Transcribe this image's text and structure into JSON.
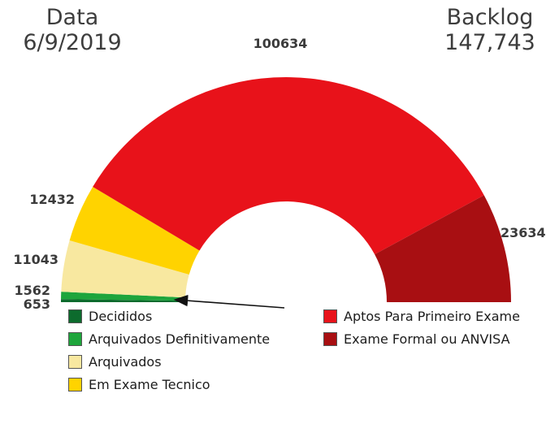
{
  "header": {
    "date_label": "Data",
    "date_value": "6/9/2019",
    "backlog_label": "Backlog",
    "backlog_value": "147,743"
  },
  "chart_data": {
    "type": "pie",
    "variant": "semi-donut",
    "orientation": "half-circle-top",
    "legend_position": "bottom-two-columns",
    "segments": [
      {
        "label": "Decididos",
        "value": 653,
        "color": "#0d6b2d"
      },
      {
        "label": "Arquivados Definitivamente",
        "value": 1562,
        "color": "#1ea53c"
      },
      {
        "label": "Arquivados",
        "value": 11043,
        "color": "#f8e8a0"
      },
      {
        "label": "Em Exame Tecnico",
        "value": 12432,
        "color": "#ffd300"
      },
      {
        "label": "Aptos Para Primeiro Exame",
        "value": 100634,
        "color": "#e8121a"
      },
      {
        "label": "Exame Formal ou ANVISA",
        "value": 23634,
        "color": "#a80f12"
      }
    ]
  }
}
